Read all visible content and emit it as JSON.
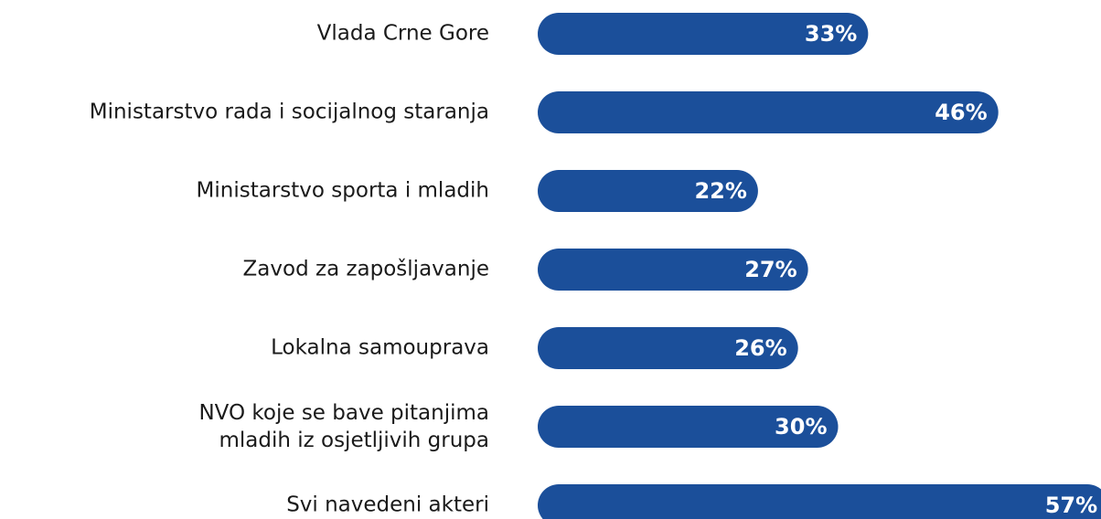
{
  "chart_data": {
    "type": "bar",
    "orientation": "horizontal",
    "categories": [
      "Vlada Crne Gore",
      "Ministarstvo rada i socijalnog staranja",
      "Ministarstvo sporta i mladih",
      "Zavod za zapošljavanje",
      "Lokalna samouprava",
      "NVO koje se bave pitanjima\nmladih iz osjetljivih grupa",
      "Svi navedeni akteri"
    ],
    "values": [
      33,
      46,
      22,
      27,
      26,
      30,
      57
    ],
    "value_labels": [
      "33%",
      "46%",
      "22%",
      "27%",
      "26%",
      "30%",
      "57%"
    ],
    "color": "#1b4f9a"
  }
}
